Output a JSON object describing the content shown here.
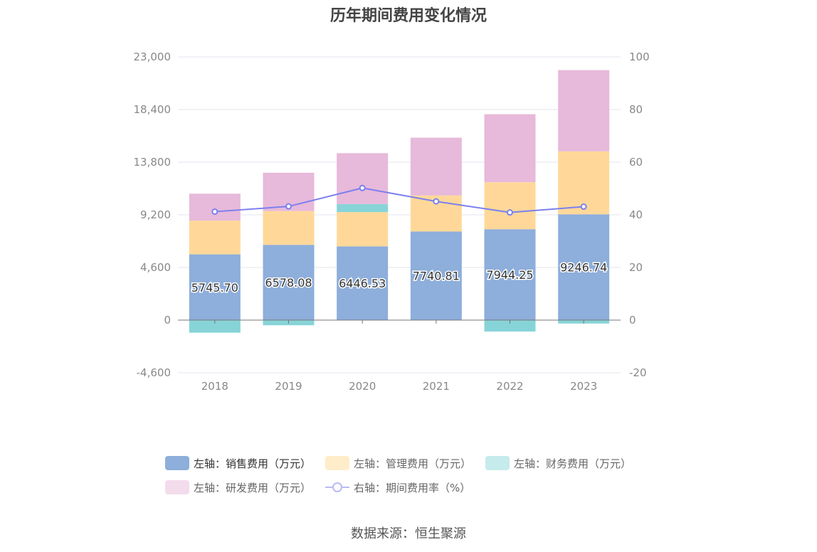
{
  "chart_data": {
    "type": "bar",
    "title": "历年期间费用变化情况",
    "categories": [
      "2018",
      "2019",
      "2020",
      "2021",
      "2022",
      "2023"
    ],
    "series": [
      {
        "name": "左轴：销售费用（万元）",
        "axis": "left",
        "color": "#8eaedb",
        "values": [
          5745.7,
          6578.08,
          6446.53,
          7740.81,
          7944.25,
          9246.74
        ],
        "value_labels": [
          "5745.70",
          "6578.08",
          "6446.53",
          "7740.81",
          "7944.25",
          "9246.74"
        ]
      },
      {
        "name": "左轴：管理费用（万元）",
        "axis": "left",
        "color": "#ffd899",
        "values": [
          2950,
          2950,
          2990,
          3150,
          4100,
          5500
        ]
      },
      {
        "name": "左轴：财务费用（万元）",
        "axis": "left",
        "color": "#87d4d8",
        "values": [
          -1100,
          -450,
          700,
          -30,
          -1000,
          -300
        ]
      },
      {
        "name": "左轴：研发费用（万元）",
        "axis": "left",
        "color": "#e7b9da",
        "values": [
          2350,
          3350,
          4450,
          5050,
          5950,
          7100
        ]
      },
      {
        "name": "右轴：期间费用率（%）",
        "axis": "right",
        "type": "line",
        "color": "#7b7fef",
        "values": [
          41.2,
          43.2,
          50.2,
          45.1,
          40.9,
          43.1
        ]
      }
    ],
    "y_left": {
      "ylim": [
        -4600,
        23000
      ],
      "ticks": [
        "-4,600",
        "0",
        "4,600",
        "9,200",
        "13,800",
        "18,400",
        "23,000"
      ]
    },
    "y_right": {
      "ylim": [
        -20,
        100
      ],
      "ticks": [
        "-20",
        "0",
        "20",
        "40",
        "60",
        "80",
        "100"
      ]
    },
    "grid": true,
    "legend_position": "bottom"
  },
  "source_text": "数据来源：恒生聚源"
}
